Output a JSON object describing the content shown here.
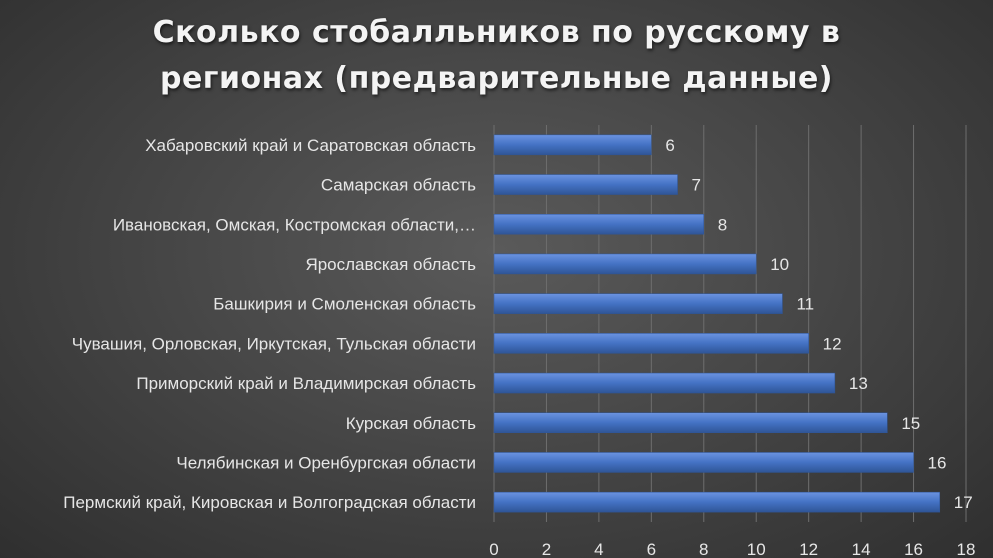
{
  "chart_data": {
    "type": "bar",
    "orientation": "horizontal",
    "title_lines": [
      "Сколько стобалльников по русскому в",
      "регионах (предварительные данные)"
    ],
    "categories": [
      "Хабаровский край и Саратовская область",
      "Самарская область",
      "Ивановская, Омская, Костромская области,…",
      "Ярославская область",
      "Башкирия и Смоленская область",
      "Чувашия, Орловская, Иркутская, Тульская области",
      "Приморский край и Владимирская область",
      "Курская область",
      "Челябинская и Оренбургская области",
      "Пермский край, Кировская и Волгоградская области"
    ],
    "values": [
      6,
      7,
      8,
      10,
      11,
      12,
      13,
      15,
      16,
      17
    ],
    "xlim": [
      0,
      18
    ],
    "xticks": [
      0,
      2,
      4,
      6,
      8,
      10,
      12,
      14,
      16,
      18
    ],
    "grid": true,
    "data_labels": true,
    "colors": {
      "bar": "#4472c4",
      "bar_light": "#6b93e0",
      "bar_dark": "#2f5597",
      "grid": "#6e6e6e",
      "text": "#e6e6e6"
    }
  }
}
